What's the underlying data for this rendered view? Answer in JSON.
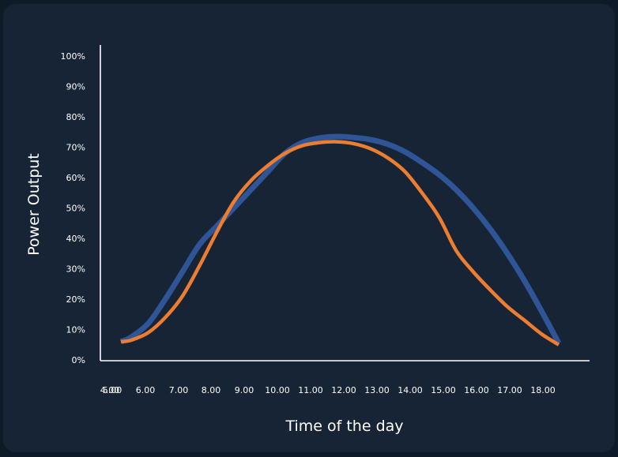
{
  "chart_data": {
    "type": "line",
    "title": "",
    "xlabel": "Time of the day",
    "ylabel": "Power Output",
    "x_ticks": [
      "4.00",
      "5.00",
      "6.00",
      "7.00",
      "8.00",
      "9.00",
      "10.00",
      "11.00",
      "12.00",
      "13.00",
      "14.00",
      "15.00",
      "16.00",
      "17.00",
      "18.00"
    ],
    "y_ticks": [
      "0%",
      "10%",
      "20%",
      "30%",
      "40%",
      "50%",
      "60%",
      "70%",
      "80%",
      "90%",
      "100%"
    ],
    "xlim": [
      4.6,
      18.9
    ],
    "ylim": [
      0,
      100
    ],
    "legend": "none",
    "grid": false,
    "series": [
      {
        "color": "#2f5597",
        "x": [
          5.2,
          5.5,
          6.0,
          6.5,
          7.0,
          7.5,
          8.0,
          8.5,
          9.0,
          9.5,
          10.0,
          10.5,
          11.0,
          11.5,
          12.0,
          12.5,
          13.0,
          13.5,
          14.0,
          14.5,
          15.0,
          15.5,
          16.0,
          16.5,
          17.0,
          17.5,
          18.0
        ],
        "y": [
          6,
          7.5,
          12,
          20,
          29,
          38,
          44,
          50,
          56,
          62,
          68,
          71.5,
          73,
          73.5,
          73.2,
          72.5,
          71,
          68.5,
          65,
          61,
          56,
          50,
          43,
          35,
          26,
          16,
          5.5
        ]
      },
      {
        "color": "#ed7d31",
        "x": [
          5.2,
          5.5,
          6.0,
          6.5,
          7.0,
          7.5,
          8.0,
          8.5,
          9.0,
          9.5,
          10.0,
          10.5,
          11.0,
          11.5,
          12.0,
          12.5,
          13.0,
          13.5,
          14.0,
          14.5,
          15.0,
          15.5,
          16.0,
          16.5,
          17.0,
          17.5,
          18.0
        ],
        "y": [
          6,
          6.5,
          9,
          14,
          21,
          31,
          42,
          52,
          59,
          64,
          68,
          70.5,
          71.5,
          71.8,
          71.2,
          69.5,
          66.5,
          62,
          55,
          47,
          36,
          29,
          23,
          17.5,
          13,
          8.5,
          5
        ]
      }
    ]
  }
}
